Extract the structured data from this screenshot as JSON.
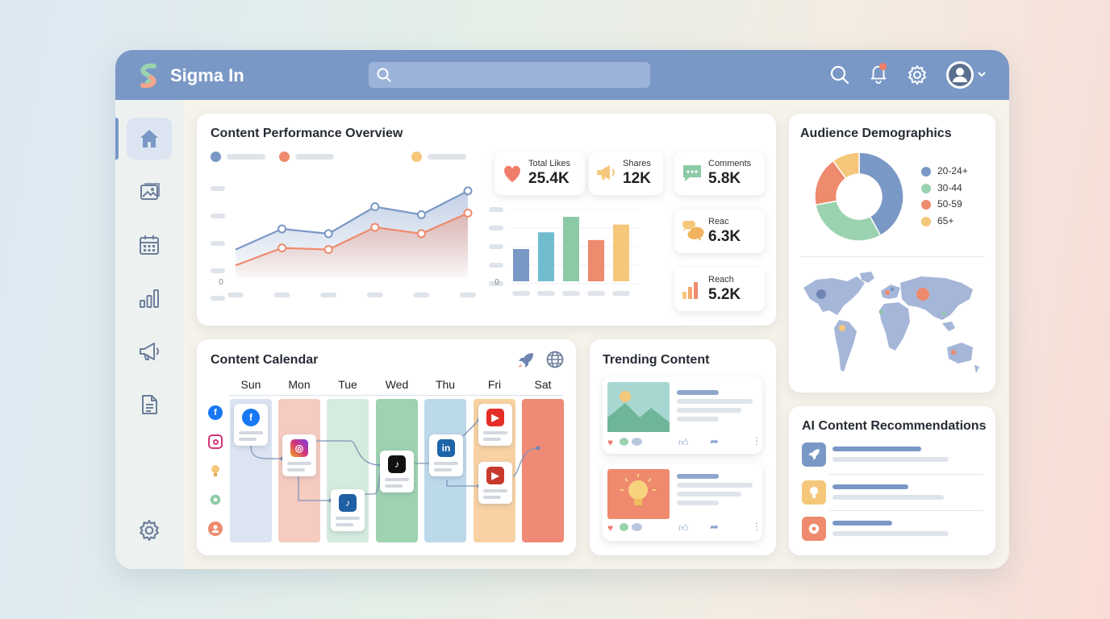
{
  "app": {
    "brand": "Sigma In",
    "search_placeholder": "",
    "colors": {
      "topbar": "#7a98c6",
      "accent_blue": "#7a98c6",
      "accent_green": "#8ccaa6",
      "accent_red": "#ee8a6d",
      "accent_yellow": "#f5c77a"
    }
  },
  "topbar": {
    "icons": [
      "search-icon",
      "bell-icon",
      "gear-icon",
      "user-avatar",
      "chevron-down-icon"
    ],
    "notification_badge": true
  },
  "sidebar": {
    "items": [
      {
        "name": "home",
        "icon": "home-icon",
        "active": true
      },
      {
        "name": "media",
        "icon": "image-icon",
        "active": false
      },
      {
        "name": "calendar",
        "icon": "calendar-icon",
        "active": false
      },
      {
        "name": "analytics",
        "icon": "bar-chart-icon",
        "active": false
      },
      {
        "name": "campaigns",
        "icon": "megaphone-icon",
        "active": false
      },
      {
        "name": "documents",
        "icon": "document-icon",
        "active": false
      },
      {
        "name": "settings",
        "icon": "gear-icon",
        "active": false
      }
    ]
  },
  "performance": {
    "title": "Content Performance Overview",
    "stats": [
      {
        "label": "Total Likes",
        "value": "25.4K",
        "icon": "heart-icon",
        "color": "#ee7d6a"
      },
      {
        "label": "Shares",
        "value": "12K",
        "icon": "megaphone-icon",
        "color": "#f5c77a"
      },
      {
        "label": "Comments",
        "value": "5.8K",
        "icon": "chat-icon",
        "color": "#8ccaa6"
      },
      {
        "label": "Reac",
        "value": "6.3K",
        "icon": "chat-bubbles-icon",
        "color": "#f5c77a"
      },
      {
        "label": "Reach",
        "value": "5.2K",
        "icon": "bar-chart-icon",
        "color": "#ee8a6d"
      }
    ]
  },
  "chart_data": [
    {
      "type": "area",
      "y_tick_labels": [
        "0"
      ],
      "legend_colors": [
        "#7a98c6",
        "#ee8a6d",
        "#f5c77a"
      ],
      "series": [
        {
          "color": "#7a98c6",
          "values": [
            1.8,
            3.1,
            2.8,
            4.5,
            4.0,
            5.5
          ]
        },
        {
          "color": "#ee8a6d",
          "values": [
            0.8,
            1.9,
            1.8,
            3.2,
            2.8,
            4.1
          ]
        }
      ],
      "ylim": [
        0,
        6
      ],
      "grid": false
    },
    {
      "type": "bar",
      "y_tick_labels": [
        "0"
      ],
      "values": [
        2.5,
        3.8,
        5.0,
        3.2,
        4.4
      ],
      "colors": [
        "#7a98c6",
        "#72bccf",
        "#8ccaa6",
        "#ee8a6d",
        "#f5c77a"
      ],
      "ylim": [
        0,
        6
      ],
      "grid": true
    },
    {
      "type": "pie",
      "labels": [
        "20-24+",
        "30-44",
        "50-59",
        "65+"
      ],
      "values": [
        42,
        30,
        18,
        10
      ],
      "colors": [
        "#7a98c6",
        "#9bd2b0",
        "#ee8a6d",
        "#f5c77a"
      ],
      "legend": "right"
    }
  ],
  "demographics": {
    "title": "Audience Demographics",
    "legend": [
      {
        "label": "20-24+",
        "color": "#7a98c6"
      },
      {
        "label": "30-44",
        "color": "#9bd2b0"
      },
      {
        "label": "50-59",
        "color": "#ee8a6d"
      },
      {
        "label": "65+",
        "color": "#f5c77a"
      }
    ]
  },
  "calendar": {
    "title": "Content Calendar",
    "days": [
      "Sun",
      "Mon",
      "Tue",
      "Wed",
      "Thu",
      "Fri",
      "Sat"
    ],
    "column_colors": [
      "#dbe4f0",
      "#f6cbc0",
      "#d5ebdd",
      "#9ed2b1",
      "#bcd9ea",
      "#f8d2a3",
      "#ee8a76"
    ],
    "posts": [
      {
        "day": "Sun",
        "platform": "facebook",
        "icon": "facebook-icon"
      },
      {
        "day": "Mon",
        "platform": "instagram",
        "icon": "instagram-icon"
      },
      {
        "day": "Tue",
        "platform": "tiktok",
        "icon": "tiktok-icon"
      },
      {
        "day": "Wed",
        "platform": "tiktok",
        "icon": "tiktok-icon"
      },
      {
        "day": "Thu",
        "platform": "linkedin",
        "icon": "linkedin-icon"
      },
      {
        "day": "Fri",
        "platform": "youtube",
        "icon": "youtube-icon"
      },
      {
        "day": "Fri",
        "platform": "youtube",
        "icon": "youtube-icon"
      }
    ],
    "header_icons": [
      "rocket-icon",
      "globe-icon"
    ]
  },
  "trending": {
    "title": "Trending Content",
    "items": [
      {
        "thumb": "image-placeholder-icon"
      },
      {
        "thumb": "lightbulb-icon"
      }
    ]
  },
  "recommendations": {
    "title": "AI Content Recommendations",
    "items": [
      {
        "icon": "rocket-icon",
        "color": "#7a98c6"
      },
      {
        "icon": "lightbulb-icon",
        "color": "#f5c77a"
      },
      {
        "icon": "gear-icon",
        "color": "#ee8a6d"
      }
    ]
  }
}
